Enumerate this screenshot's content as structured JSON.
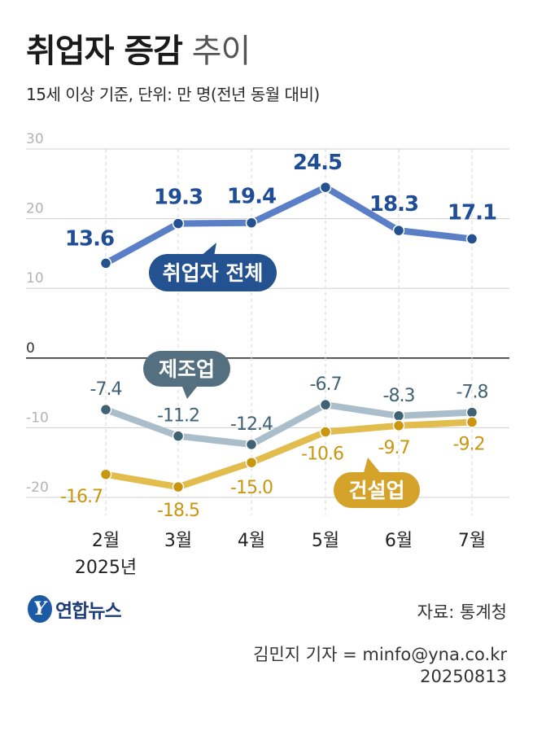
{
  "title": {
    "bold": "취업자 증감",
    "light": "추이"
  },
  "subtitle": "15세 이상 기준, 단위: 만 명(전년 동월 대비)",
  "chart_data": {
    "type": "line",
    "categories": [
      "2월",
      "3월",
      "4월",
      "5월",
      "6월",
      "7월"
    ],
    "year_label": "2025년",
    "ylim": [
      -20,
      30
    ],
    "yticks": [
      "30",
      "20",
      "10",
      "0",
      "-10",
      "-20"
    ],
    "grid": true,
    "series": [
      {
        "name": "취업자 전체",
        "color": "#5b7fc7",
        "label_color": "#1f4e96",
        "tag_color": "#24518f",
        "values": [
          13.6,
          19.3,
          19.4,
          24.5,
          18.3,
          17.1
        ],
        "labels": [
          "13.6",
          "19.3",
          "19.4",
          "24.5",
          "18.3",
          "17.1"
        ]
      },
      {
        "name": "제조업",
        "color": "#a9bdca",
        "label_color": "#3f6275",
        "tag_color": "#536f80",
        "values": [
          -7.4,
          -11.2,
          -12.4,
          -6.7,
          -8.3,
          -7.8
        ],
        "labels": [
          "-7.4",
          "-11.2",
          "-12.4",
          "-6.7",
          "-8.3",
          "-7.8"
        ]
      },
      {
        "name": "건설업",
        "color": "#e3bc4e",
        "label_color": "#c9960f",
        "tag_color": "#d5a22a",
        "values": [
          -16.7,
          -18.5,
          -15.0,
          -10.6,
          -9.7,
          -9.2
        ],
        "labels": [
          "-16.7",
          "-18.5",
          "-15.0",
          "-10.6",
          "-9.7",
          "-9.2"
        ]
      }
    ]
  },
  "logo_text": "연합뉴스",
  "logo_mark": "Y",
  "source": "자료: 통계청",
  "credit_line1": "김민지 기자 = minfo@yna.co.kr",
  "credit_line2": "20250813"
}
